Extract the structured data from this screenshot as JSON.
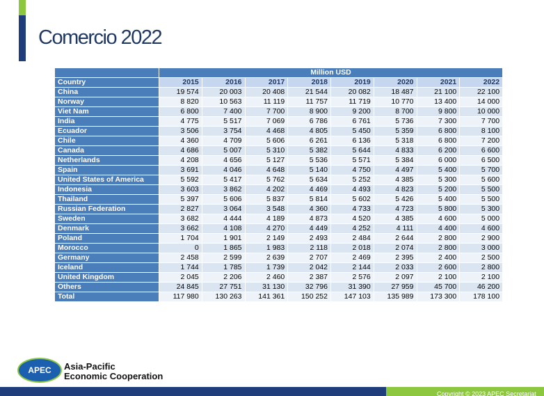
{
  "header": {
    "title": "Comercio 2022"
  },
  "table": {
    "unit_header": "Million USD",
    "columns": [
      "Country",
      "2015",
      "2016",
      "2017",
      "2018",
      "2019",
      "2020",
      "2021",
      "2022"
    ],
    "rows": [
      [
        "China",
        "19 574",
        "20 003",
        "20 408",
        "21 544",
        "20 082",
        "18 487",
        "21 100",
        "22 100"
      ],
      [
        "Norway",
        "8 820",
        "10 563",
        "11 119",
        "11 757",
        "11 719",
        "10 770",
        "13 400",
        "14 000"
      ],
      [
        "Viet Nam",
        "6 800",
        "7 400",
        "7 700",
        "8 900",
        "9 200",
        "8 700",
        "9 800",
        "10 000"
      ],
      [
        "India",
        "4 775",
        "5 517",
        "7 069",
        "6 786",
        "6 761",
        "5 736",
        "7 300",
        "7 700"
      ],
      [
        "Ecuador",
        "3 506",
        "3 754",
        "4 468",
        "4 805",
        "5 450",
        "5 359",
        "6 800",
        "8 100"
      ],
      [
        "Chile",
        "4 360",
        "4 709",
        "5 606",
        "6 261",
        "6 136",
        "5 318",
        "6 800",
        "7 200"
      ],
      [
        "Canada",
        "4 686",
        "5 007",
        "5 310",
        "5 382",
        "5 644",
        "4 833",
        "6 200",
        "6 600"
      ],
      [
        "Netherlands",
        "4 208",
        "4 656",
        "5 127",
        "5 536",
        "5 571",
        "5 384",
        "6 000",
        "6 500"
      ],
      [
        "Spain",
        "3 691",
        "4 046",
        "4 648",
        "5 140",
        "4 750",
        "4 497",
        "5 400",
        "5 700"
      ],
      [
        "United States of America",
        "5 592",
        "5 417",
        "5 762",
        "5 634",
        "5 252",
        "4 385",
        "5 300",
        "5 600"
      ],
      [
        "Indonesia",
        "3 603",
        "3 862",
        "4 202",
        "4 469",
        "4 493",
        "4 823",
        "5 200",
        "5 500"
      ],
      [
        "Thailand",
        "5 397",
        "5 606",
        "5 837",
        "5 814",
        "5 602",
        "5 426",
        "5 400",
        "5 500"
      ],
      [
        "Russian Federation",
        "2 827",
        "3 064",
        "3 548",
        "4 360",
        "4 733",
        "4 723",
        "5 800",
        "5 300"
      ],
      [
        "Sweden",
        "3 682",
        "4 444",
        "4 189",
        "4 873",
        "4 520",
        "4 385",
        "4 600",
        "5 000"
      ],
      [
        "Denmark",
        "3 662",
        "4 108",
        "4 270",
        "4 449",
        "4 252",
        "4 111",
        "4 400",
        "4 600"
      ],
      [
        "Poland",
        "1 704",
        "1 901",
        "2 149",
        "2 493",
        "2 484",
        "2 644",
        "2 800",
        "2 900"
      ],
      [
        "Morocco",
        "0",
        "1 865",
        "1 983",
        "2 118",
        "2 018",
        "2 074",
        "2 800",
        "3 000"
      ],
      [
        "Germany",
        "2 458",
        "2 599",
        "2 639",
        "2 707",
        "2 469",
        "2 395",
        "2 400",
        "2 500"
      ],
      [
        "Iceland",
        "1 744",
        "1 785",
        "1 739",
        "2 042",
        "2 144",
        "2 033",
        "2 600",
        "2 800"
      ],
      [
        "United Kingdom",
        "2 045",
        "2 206",
        "2 460",
        "2 387",
        "2 576",
        "2 097",
        "2 100",
        "2 100"
      ],
      [
        "Others",
        "24 845",
        "27 751",
        "31 130",
        "32 796",
        "31 390",
        "27 959",
        "45 700",
        "46 200"
      ],
      [
        "Total",
        "117 980",
        "130 263",
        "141 361",
        "150 252",
        "147 103",
        "135 989",
        "173 300",
        "178 100"
      ]
    ]
  },
  "footer": {
    "logo_text": "APEC",
    "org_line1": "Asia-Pacific",
    "org_line2": "Economic Cooperation",
    "copyright": "Copyright © 2023 APEC Secretariat"
  }
}
